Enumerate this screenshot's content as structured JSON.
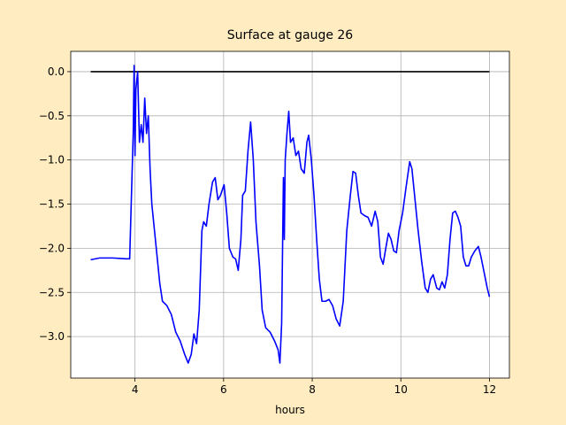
{
  "chart_data": {
    "type": "line",
    "title": "Surface at gauge 26",
    "xlabel": "hours",
    "xlim": [
      2.55,
      12.45
    ],
    "ylim": [
      -3.47,
      0.23
    ],
    "xticks": [
      4,
      6,
      8,
      10,
      12
    ],
    "yticks": [
      {
        "value": 0,
        "label": "0.0"
      },
      {
        "value": -0.5,
        "label": "−0.5"
      },
      {
        "value": -1,
        "label": "−1.0"
      },
      {
        "value": -1.5,
        "label": "−1.5"
      },
      {
        "value": -2,
        "label": "−2.0"
      },
      {
        "value": -2.5,
        "label": "−2.5"
      },
      {
        "value": -3,
        "label": "−3.0"
      }
    ],
    "grid": true,
    "series": [
      {
        "color": "#000000",
        "x": [
          3,
          12
        ],
        "values": [
          0,
          0
        ]
      },
      {
        "color": "#0000ff",
        "x": [
          3.0,
          3.2,
          3.5,
          3.8,
          3.88,
          3.92,
          3.96,
          3.98,
          4.0,
          4.02,
          4.06,
          4.1,
          4.14,
          4.18,
          4.22,
          4.26,
          4.3,
          4.34,
          4.38,
          4.44,
          4.5,
          4.56,
          4.62,
          4.72,
          4.82,
          4.92,
          5.02,
          5.12,
          5.2,
          5.27,
          5.33,
          5.39,
          5.45,
          5.51,
          5.55,
          5.61,
          5.67,
          5.75,
          5.81,
          5.87,
          5.93,
          6.01,
          6.07,
          6.13,
          6.21,
          6.27,
          6.33,
          6.39,
          6.43,
          6.49,
          6.55,
          6.61,
          6.67,
          6.73,
          6.81,
          6.87,
          6.95,
          7.05,
          7.15,
          7.23,
          7.27,
          7.31,
          7.35,
          7.37,
          7.39,
          7.43,
          7.47,
          7.51,
          7.57,
          7.63,
          7.69,
          7.75,
          7.82,
          7.88,
          7.92,
          7.98,
          8.04,
          8.1,
          8.16,
          8.22,
          8.3,
          8.38,
          8.46,
          8.54,
          8.62,
          8.7,
          8.78,
          8.86,
          8.92,
          8.98,
          9.04,
          9.1,
          9.18,
          9.26,
          9.34,
          9.42,
          9.48,
          9.54,
          9.6,
          9.66,
          9.72,
          9.78,
          9.84,
          9.9,
          9.96,
          10.04,
          10.12,
          10.2,
          10.25,
          10.31,
          10.39,
          10.47,
          10.55,
          10.61,
          10.67,
          10.73,
          10.81,
          10.87,
          10.93,
          10.99,
          11.05,
          11.11,
          11.17,
          11.23,
          11.29,
          11.35,
          11.41,
          11.47,
          11.53,
          11.59,
          11.67,
          11.75,
          11.81,
          11.89,
          11.95,
          12.0
        ],
        "values": [
          -2.13,
          -2.11,
          -2.11,
          -2.12,
          -2.12,
          -1.4,
          -0.7,
          0.07,
          -0.95,
          -0.2,
          0.0,
          -0.8,
          -0.6,
          -0.8,
          -0.3,
          -0.7,
          -0.5,
          -1.1,
          -1.5,
          -1.8,
          -2.1,
          -2.4,
          -2.6,
          -2.65,
          -2.75,
          -2.95,
          -3.05,
          -3.2,
          -3.3,
          -3.2,
          -2.97,
          -3.08,
          -2.7,
          -1.8,
          -1.7,
          -1.75,
          -1.5,
          -1.25,
          -1.2,
          -1.45,
          -1.4,
          -1.28,
          -1.6,
          -2.0,
          -2.1,
          -2.12,
          -2.25,
          -1.9,
          -1.4,
          -1.35,
          -0.9,
          -0.57,
          -1.0,
          -1.7,
          -2.2,
          -2.7,
          -2.9,
          -2.95,
          -3.05,
          -3.15,
          -3.3,
          -2.85,
          -1.2,
          -1.9,
          -1.0,
          -0.7,
          -0.45,
          -0.8,
          -0.75,
          -0.95,
          -0.9,
          -1.1,
          -1.15,
          -0.8,
          -0.72,
          -1.0,
          -1.4,
          -1.9,
          -2.35,
          -2.6,
          -2.6,
          -2.58,
          -2.65,
          -2.8,
          -2.88,
          -2.6,
          -1.8,
          -1.4,
          -1.13,
          -1.15,
          -1.4,
          -1.6,
          -1.63,
          -1.65,
          -1.75,
          -1.58,
          -1.7,
          -2.1,
          -2.18,
          -2.0,
          -1.83,
          -1.9,
          -2.03,
          -2.05,
          -1.8,
          -1.6,
          -1.3,
          -1.02,
          -1.1,
          -1.4,
          -1.8,
          -2.15,
          -2.45,
          -2.5,
          -2.35,
          -2.3,
          -2.45,
          -2.47,
          -2.38,
          -2.45,
          -2.3,
          -1.9,
          -1.6,
          -1.58,
          -1.65,
          -1.75,
          -2.1,
          -2.2,
          -2.2,
          -2.1,
          -2.03,
          -1.98,
          -2.1,
          -2.3,
          -2.45,
          -2.55
        ]
      }
    ]
  }
}
